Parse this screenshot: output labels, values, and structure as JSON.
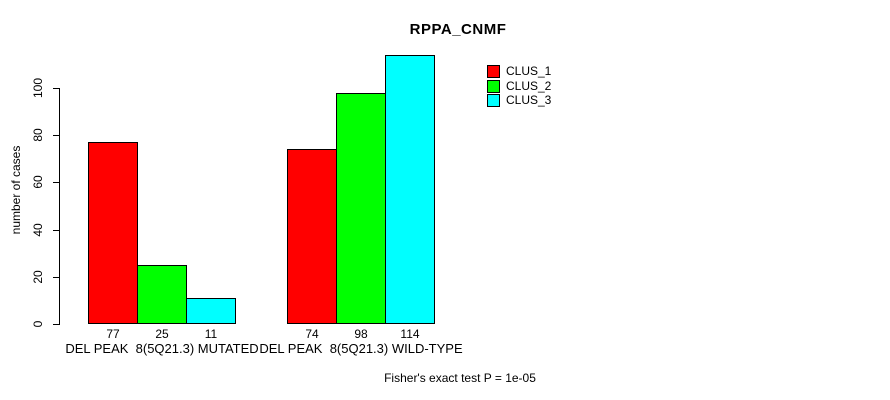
{
  "chart_data": {
    "type": "bar",
    "title": "RPPA_CNMF",
    "ylabel": "number of cases",
    "xlabel": "",
    "ylim": [
      0,
      115
    ],
    "yticks": [
      0,
      20,
      40,
      60,
      80,
      100
    ],
    "grid": false,
    "legend_position": "top-right",
    "categories": [
      "DEL PEAK  8(5Q21.3) MUTATED",
      "DEL PEAK  8(5Q21.3) WILD-TYPE"
    ],
    "series": [
      {
        "name": "CLUS_1",
        "color": "#FF0000",
        "values": [
          77,
          74
        ]
      },
      {
        "name": "CLUS_2",
        "color": "#00FF00",
        "values": [
          25,
          98
        ]
      },
      {
        "name": "CLUS_3",
        "color": "#00FFFF",
        "values": [
          11,
          114
        ]
      }
    ],
    "bar_value_labels": [
      [
        77,
        25,
        11
      ],
      [
        74,
        98,
        114
      ]
    ],
    "annotation": "Fisher's exact test P = 1e-05"
  }
}
